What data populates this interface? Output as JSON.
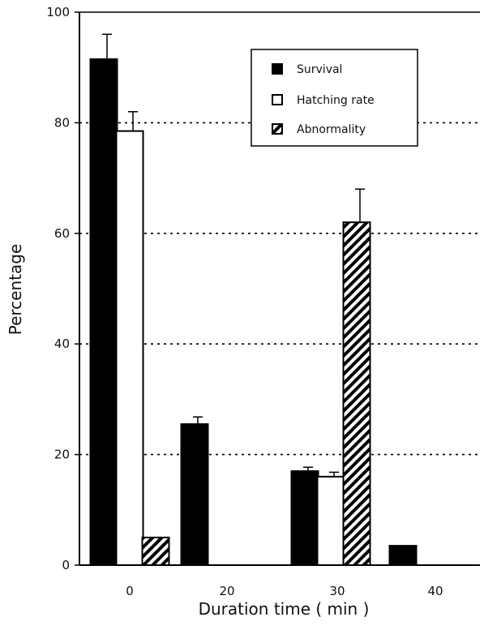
{
  "chart_data": {
    "type": "bar",
    "categories": [
      "0",
      "20",
      "30",
      "40"
    ],
    "series": [
      {
        "name": "Survival",
        "values": [
          91.5,
          25.5,
          17,
          3.5
        ],
        "errors": [
          4.5,
          1.3,
          0.7,
          null
        ],
        "style": "solid",
        "color": "#000000"
      },
      {
        "name": "Hatching rate",
        "values": [
          78.5,
          null,
          16,
          null
        ],
        "errors": [
          3.5,
          null,
          0.8,
          null
        ],
        "style": "open",
        "color": "#ffffff"
      },
      {
        "name": "Abnormality",
        "values": [
          5,
          null,
          62,
          null
        ],
        "errors": [
          null,
          null,
          6,
          null
        ],
        "style": "hatched",
        "color": "#000000"
      }
    ],
    "xlabel": "Duration time ( min )",
    "ylabel": "Percentage",
    "ylim": [
      0,
      100
    ],
    "yticks": [
      0,
      20,
      40,
      60,
      80,
      100
    ],
    "grid": "horizontal dotted at 20, 40, 60, 80",
    "legend_position": "top-right"
  }
}
